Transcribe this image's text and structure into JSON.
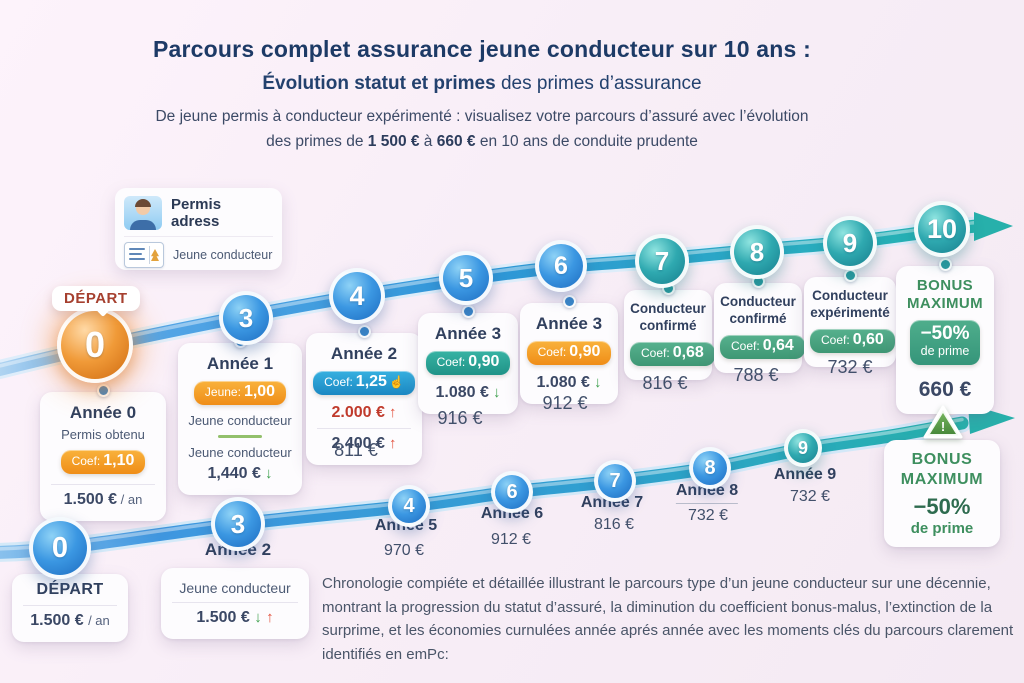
{
  "header": {
    "title": "Parcours complet assurance jeune conducteur sur 10 ans :",
    "subtitle_bold": "Évolution statut et primes",
    "subtitle_rest": " des primes d’assurance",
    "desc1": "De jeune permis à conducteur expérimenté : visualisez votre parcours d’assuré avec l’évolution",
    "desc2_pre": "des primes de ",
    "desc2_v1": "1 500 €",
    "desc2_mid": " à ",
    "desc2_v2": "660 €",
    "desc2_post": " en 10 ans de conduite prudente"
  },
  "license_card": {
    "line1": "Permis adress",
    "line2": "Jeune conducteur"
  },
  "icons": {
    "trend_down": "↓",
    "trend_up": "↑",
    "hand": "☝",
    "warning": "!"
  },
  "colors": {
    "accent_blue": "#2f96d8",
    "accent_teal": "#27b0ab",
    "accent_orange": "#ef8d17",
    "bonus_green": "#3e8f5f",
    "badge_green": "#4aa884",
    "title_navy": "#1d3a66",
    "alert_red": "#c03a2c"
  },
  "top_row": {
    "depart_label": "DÉPART",
    "circles": [
      "0",
      "3",
      "4",
      "5",
      "6",
      "7",
      "8",
      "9",
      "10"
    ],
    "cards": [
      {
        "name": "annee-0",
        "title": "Année 0",
        "items": [
          {
            "type": "text",
            "v": "Permis obtenu"
          },
          {
            "type": "badge",
            "color": "orange",
            "label": "Coef:",
            "value": "1,10"
          },
          {
            "type": "divider"
          },
          {
            "type": "price",
            "v": "1.500 €",
            "suffix": "/ an"
          }
        ]
      },
      {
        "name": "annee-1",
        "title": "Année 1",
        "items": [
          {
            "type": "badge",
            "color": "orange",
            "label": "Jeune:",
            "value": "1,00"
          },
          {
            "type": "text",
            "v": "Jeune conducteur"
          },
          {
            "type": "divider",
            "green": true
          },
          {
            "type": "text",
            "v": "Jeune conducteur"
          },
          {
            "type": "price",
            "v": "1,440 €",
            "arrows": [
              "down"
            ]
          }
        ]
      },
      {
        "name": "annee-2",
        "title": "Année 2",
        "items": [
          {
            "type": "badge",
            "color": "blue",
            "label": "Coef:",
            "value": "1,25",
            "icon": "hand"
          },
          {
            "type": "price",
            "v": "2.000 €",
            "tone": "red",
            "arrows": [
              "up"
            ]
          },
          {
            "type": "divider"
          },
          {
            "type": "price",
            "v": "2.400 €",
            "arrows": [
              "up"
            ]
          }
        ]
      },
      {
        "name": "annee-3-coef-teal",
        "title": "Année 3",
        "items": [
          {
            "type": "badge",
            "color": "teal",
            "label": "Coef:",
            "value": "0,90"
          },
          {
            "type": "price",
            "v": "1.080 €",
            "arrows": [
              "down"
            ]
          }
        ]
      },
      {
        "name": "annee-3-coef-orange",
        "title": "Année 3",
        "items": [
          {
            "type": "badge",
            "color": "orange",
            "label": "Coef:",
            "value": "0,90"
          },
          {
            "type": "price",
            "v": "1.080 €",
            "arrows": [
              "down"
            ]
          }
        ]
      },
      {
        "name": "conducteur-confirme-7",
        "title": "Conducteur confirmé",
        "small": true,
        "items": [
          {
            "type": "badge",
            "color": "green",
            "label": "Coef:",
            "value": "0,68"
          }
        ]
      },
      {
        "name": "conducteur-confirme-8",
        "title": "Conducteur confirmé",
        "small": true,
        "items": [
          {
            "type": "badge",
            "color": "green",
            "label": "Coef:",
            "value": "0,64"
          }
        ]
      },
      {
        "name": "conducteur-experimente-9",
        "title": "Conducteur expérimenté",
        "small": true,
        "items": [
          {
            "type": "badge",
            "color": "green",
            "label": "Coef:",
            "value": "0,60"
          }
        ]
      },
      {
        "name": "bonus-maximum-top",
        "title": "BONUS MAXIMUM",
        "bonus": true,
        "items": [
          {
            "type": "bonus-badge",
            "big": "−50%",
            "small": "de prime"
          },
          {
            "type": "price",
            "v": "660 €",
            "big": true
          }
        ]
      }
    ],
    "loose_prices": [
      "811 €",
      "916 €",
      "912 €",
      "816 €",
      "788 €",
      "732 €"
    ]
  },
  "bottom": {
    "circles": [
      "0",
      "3",
      "4",
      "6",
      "7",
      "8",
      "9"
    ],
    "depart_card": {
      "title": "DÉPART",
      "price": "1.500 €",
      "suffix": "/ an"
    },
    "annee2_label": "Année 2",
    "jeune_card": {
      "title": "Jeune conducteur",
      "price": "1.500 €"
    },
    "year_labels": [
      {
        "label": "Année 5",
        "price": "970 €"
      },
      {
        "label": "Année 6",
        "price": "912 €"
      },
      {
        "label": "Année 7",
        "price": "816 €"
      },
      {
        "label": "Année 8",
        "price": "732 €",
        "underline": true
      },
      {
        "label": "Année 9",
        "price": "732 €"
      }
    ],
    "bonus_card": {
      "line1": "BONUS",
      "line2": "MAXIMUM",
      "big": "−50%",
      "small": "de prime"
    }
  },
  "paragraph": "Chronologie compiéte et détaillée illustrant le parcours type d’un jeune conducteur sur une décennie, montrant la progression du statut d’assuré, la diminution du coefficient bonus-malus, l’extinction de la surprime, et les économies curnulées année aprés année avec les moments clés du parcours clarement identifiés en emPc:"
}
